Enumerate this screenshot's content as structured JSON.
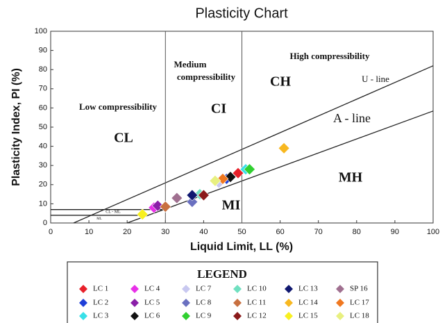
{
  "chart_data": {
    "type": "scatter",
    "title": "Plasticity Chart",
    "xlabel": "Liquid Limit, LL (%)",
    "ylabel": "Plasticity Index, PI (%)",
    "xlim": [
      0,
      100
    ],
    "ylim": [
      0,
      100
    ],
    "xticks": [
      0,
      10,
      20,
      30,
      40,
      50,
      60,
      70,
      80,
      90,
      100
    ],
    "yticks": [
      0,
      10,
      20,
      30,
      40,
      50,
      60,
      70,
      80,
      90,
      100
    ],
    "legend_title": "LEGEND",
    "annotations": [
      "Low compressibility",
      "Medium",
      "compressibility",
      "High compressibility",
      "CL",
      "CI",
      "CH",
      "MI",
      "MH",
      "U - line",
      "A - line",
      "CL - ML",
      "ML"
    ],
    "reference_lines": [
      {
        "x": [
          20,
          100
        ],
        "y": [
          0,
          58.4
        ]
      },
      {
        "x": [
          6,
          100
        ],
        "y": [
          0,
          82
        ]
      },
      {
        "x": [
          30,
          30
        ],
        "y": [
          0,
          100
        ]
      },
      {
        "x": [
          50,
          50
        ],
        "y": [
          0,
          100
        ]
      },
      {
        "x": [
          0,
          29.6
        ],
        "y": [
          7,
          7
        ]
      },
      {
        "x": [
          0,
          25.5
        ],
        "y": [
          4,
          4
        ]
      }
    ],
    "series": [
      {
        "name": "LC 1",
        "color": "#e8202a",
        "x": [
          49
        ],
        "y": [
          26
        ]
      },
      {
        "name": "LC 2",
        "color": "#1f3fd8",
        "x": [
          46
        ],
        "y": [
          23
        ]
      },
      {
        "name": "LC 3",
        "color": "#38e0e8",
        "x": [
          51
        ],
        "y": [
          28
        ]
      },
      {
        "name": "LC 4",
        "color": "#e830e8",
        "x": [
          27
        ],
        "y": [
          8
        ]
      },
      {
        "name": "LC 5",
        "color": "#8a1fa8",
        "x": [
          28
        ],
        "y": [
          9
        ]
      },
      {
        "name": "LC 6",
        "color": "#111111",
        "x": [
          47
        ],
        "y": [
          24
        ]
      },
      {
        "name": "LC 7",
        "color": "#c8c8f0",
        "x": [
          44
        ],
        "y": [
          21
        ]
      },
      {
        "name": "LC 8",
        "color": "#6a70c0",
        "x": [
          37
        ],
        "y": [
          11
        ]
      },
      {
        "name": "LC 9",
        "color": "#30d030",
        "x": [
          52
        ],
        "y": [
          28
        ]
      },
      {
        "name": "LC 10",
        "color": "#70e0c0",
        "x": [
          39
        ],
        "y": [
          15
        ]
      },
      {
        "name": "LC 11",
        "color": "#c87040",
        "x": [
          30
        ],
        "y": [
          8.5
        ]
      },
      {
        "name": "LC 12",
        "color": "#8a1a1a",
        "x": [
          40
        ],
        "y": [
          14.5
        ]
      },
      {
        "name": "LC 13",
        "color": "#101870",
        "x": [
          37
        ],
        "y": [
          14.5
        ]
      },
      {
        "name": "LC 14",
        "color": "#f8b820",
        "x": [
          61
        ],
        "y": [
          39
        ]
      },
      {
        "name": "LC 15",
        "color": "#f8f020",
        "x": [
          24
        ],
        "y": [
          4.5
        ]
      },
      {
        "name": "SP 16",
        "color": "#a07090",
        "x": [
          33
        ],
        "y": [
          13
        ]
      },
      {
        "name": "LC 17",
        "color": "#f07820",
        "x": [
          45
        ],
        "y": [
          23
        ]
      },
      {
        "name": "LC 18",
        "color": "#e8f080",
        "x": [
          43
        ],
        "y": [
          22
        ]
      }
    ]
  }
}
